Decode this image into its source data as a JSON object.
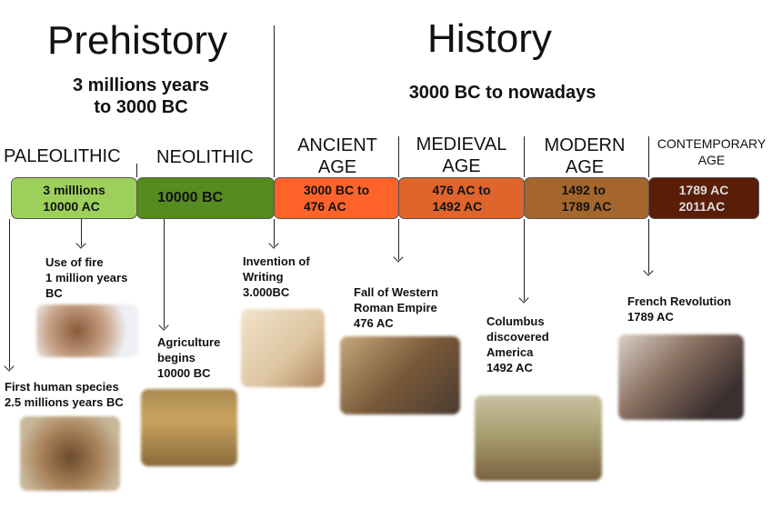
{
  "prehistory": {
    "title": "Prehistory",
    "range": "3 millions years\nto 3000 BC"
  },
  "history": {
    "title": "History",
    "range": "3000 BC to nowadays"
  },
  "eras": [
    {
      "name": "PALEOLITHIC",
      "dates": "3 milllions\n10000 AC",
      "color": "#9dd05a"
    },
    {
      "name": "NEOLITHIC",
      "dates": "10000 BC",
      "color": "#558b1f"
    },
    {
      "name": "ANCIENT\nAGE",
      "dates": "3000 BC to\n476 AC",
      "color": "#ff632a"
    },
    {
      "name": "MEDIEVAL\nAGE",
      "dates": "476 AC to\n1492 AC",
      "color": "#df652c"
    },
    {
      "name": "MODERN\nAGE",
      "dates": "1492 to\n1789 AC",
      "color": "#a4662c"
    },
    {
      "name": "CONTEMPORARY\nAGE",
      "dates": "1789 AC\n2011AC",
      "color": "#5a1d08"
    }
  ],
  "events": [
    {
      "text": "Use of fire\n1 million years\nBC",
      "image": "people-around-fire"
    },
    {
      "text": "First human species\n2.5 millions years BC",
      "image": "early-humans"
    },
    {
      "text": "Agriculture\nbegins\n10000 BC",
      "image": "early-farming"
    },
    {
      "text": "Invention of\nWriting\n3.000BC",
      "image": "pen-writing"
    },
    {
      "text": "Fall of Western\nRoman Empire\n476 AC",
      "image": "roman-battle"
    },
    {
      "text": "Columbus\ndiscovered\nAmerica\n1492 AC",
      "image": "columbus-landing"
    },
    {
      "text": "French Revolution\n1789 AC",
      "image": "liberty-leading-people"
    }
  ]
}
